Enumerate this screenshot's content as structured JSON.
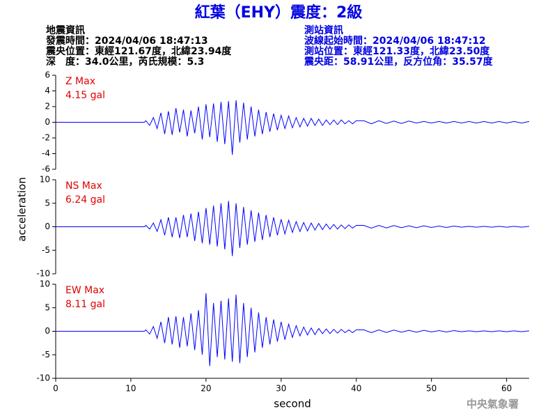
{
  "header": {
    "title": "紅葉（EHY）震度：2級",
    "left": [
      "地震資訊",
      "發震時間：2024/04/06 18:47:13",
      "震央位置：東經121.67度，北緯23.94度",
      "深　度：34.0公里，芮氏規模：5.3"
    ],
    "right": [
      "測站資訊",
      "波線起始時間：2024/04/06 18:47:12",
      "測站位置：東經121.33度，北緯23.50度",
      "震央距：58.91公里，反方位角：35.57度"
    ]
  },
  "footer": {
    "agency": "中央氣象署"
  },
  "chart_data": [
    {
      "type": "line",
      "max_label": "Z Max",
      "max_value": "4.15 gal",
      "color": "#0000ff",
      "xlim": [
        0,
        63
      ],
      "ylim": [
        -6,
        6
      ],
      "yticks": [
        -6,
        -4,
        -2,
        0,
        2,
        4,
        6
      ],
      "x": [
        0,
        11.8,
        12,
        12.5,
        13,
        13.5,
        14,
        14.5,
        15,
        15.5,
        16,
        16.5,
        17,
        17.5,
        18,
        18.5,
        19,
        19.5,
        20,
        20.5,
        21,
        21.5,
        22,
        22.5,
        23,
        23.5,
        24,
        24.5,
        25,
        25.5,
        26,
        26.5,
        27,
        27.5,
        28,
        28.5,
        29,
        29.5,
        30,
        30.5,
        31,
        31.5,
        32,
        32.5,
        33,
        33.5,
        34,
        34.5,
        35,
        35.5,
        36,
        36.5,
        37,
        37.5,
        38,
        38.5,
        39,
        39.5,
        40,
        41,
        42,
        43,
        44,
        45,
        46,
        47,
        48,
        49,
        50,
        51,
        52,
        53,
        54,
        55,
        56,
        57,
        58,
        59,
        60,
        61,
        62,
        63
      ],
      "values": [
        0,
        0,
        0.2,
        -0.4,
        0.6,
        -0.8,
        1.2,
        -1.5,
        1.4,
        -1.6,
        1.8,
        -1.3,
        1.6,
        -1.8,
        1.5,
        -1.4,
        2.0,
        -2.2,
        2.3,
        -1.9,
        2.4,
        -2.5,
        2.6,
        -2.8,
        2.7,
        -4.15,
        2.8,
        -2.6,
        2.5,
        -2.2,
        2.0,
        -1.8,
        1.6,
        -1.5,
        1.3,
        -1.2,
        1.1,
        -1.0,
        0.9,
        -0.8,
        0.8,
        -0.7,
        0.6,
        -0.6,
        0.5,
        -0.5,
        0.5,
        -0.4,
        0.4,
        -0.4,
        0.3,
        -0.3,
        0.3,
        -0.3,
        0.3,
        -0.2,
        0.2,
        -0.2,
        0.2,
        0.2,
        -0.2,
        0.2,
        -0.15,
        0.15,
        -0.15,
        0.15,
        -0.1,
        0.1,
        -0.1,
        0.1,
        -0.1,
        0.1,
        -0.1,
        0.1,
        -0.1,
        0.1,
        -0.1,
        0.1,
        -0.1,
        0.1,
        -0.1,
        0.1
      ]
    },
    {
      "type": "line",
      "max_label": "NS Max",
      "max_value": "6.24 gal",
      "color": "#0000ff",
      "y_label": "acceleration",
      "xlim": [
        0,
        63
      ],
      "ylim": [
        -10,
        10
      ],
      "yticks": [
        -10,
        -5,
        0,
        5,
        10
      ],
      "x": [
        0,
        11.8,
        12,
        12.5,
        13,
        13.5,
        14,
        14.5,
        15,
        15.5,
        16,
        16.5,
        17,
        17.5,
        18,
        18.5,
        19,
        19.5,
        20,
        20.5,
        21,
        21.5,
        22,
        22.5,
        23,
        23.5,
        24,
        24.5,
        25,
        25.5,
        26,
        26.5,
        27,
        27.5,
        28,
        28.5,
        29,
        29.5,
        30,
        30.5,
        31,
        31.5,
        32,
        32.5,
        33,
        33.5,
        34,
        34.5,
        35,
        35.5,
        36,
        36.5,
        37,
        37.5,
        38,
        38.5,
        39,
        39.5,
        40,
        41,
        42,
        43,
        44,
        45,
        46,
        47,
        48,
        49,
        50,
        51,
        52,
        53,
        54,
        55,
        56,
        57,
        58,
        59,
        60,
        61,
        62,
        63
      ],
      "values": [
        0,
        0,
        0.3,
        -0.5,
        0.8,
        -1.0,
        1.5,
        -1.8,
        2.0,
        -2.2,
        2.0,
        -2.4,
        2.5,
        -2.2,
        2.8,
        -3.0,
        3.2,
        -3.5,
        4.0,
        -3.8,
        4.5,
        -4.2,
        5.0,
        -4.8,
        5.5,
        -6.24,
        5.0,
        -4.5,
        4.2,
        -3.8,
        3.5,
        -3.2,
        3.0,
        -2.8,
        2.5,
        -2.2,
        2.0,
        -1.8,
        1.6,
        -1.5,
        1.4,
        -1.2,
        1.1,
        -1.0,
        0.9,
        -0.9,
        0.8,
        -0.7,
        0.7,
        -0.6,
        0.6,
        -0.5,
        0.5,
        -0.5,
        0.4,
        -0.4,
        0.4,
        -0.3,
        0.3,
        0.3,
        -0.3,
        0.3,
        -0.25,
        0.25,
        -0.2,
        0.2,
        -0.2,
        0.2,
        -0.15,
        0.15,
        -0.15,
        0.15,
        -0.1,
        0.1,
        -0.1,
        0.1,
        -0.1,
        0.1,
        -0.1,
        0.1,
        -0.1,
        0.1
      ]
    },
    {
      "type": "line",
      "max_label": "EW Max",
      "max_value": "8.11 gal",
      "color": "#0000ff",
      "x_label": "second",
      "xlim": [
        0,
        63
      ],
      "ylim": [
        -10,
        10
      ],
      "yticks": [
        -10,
        -5,
        0,
        5,
        10
      ],
      "xticks": [
        0,
        10,
        20,
        30,
        40,
        50,
        60
      ],
      "x": [
        0,
        11.8,
        12,
        12.5,
        13,
        13.5,
        14,
        14.5,
        15,
        15.5,
        16,
        16.5,
        17,
        17.5,
        18,
        18.5,
        19,
        19.5,
        20,
        20.5,
        21,
        21.5,
        22,
        22.5,
        23,
        23.5,
        24,
        24.5,
        25,
        25.5,
        26,
        26.5,
        27,
        27.5,
        28,
        28.5,
        29,
        29.5,
        30,
        30.5,
        31,
        31.5,
        32,
        32.5,
        33,
        33.5,
        34,
        34.5,
        35,
        35.5,
        36,
        36.5,
        37,
        37.5,
        38,
        38.5,
        39,
        39.5,
        40,
        41,
        42,
        43,
        44,
        45,
        46,
        47,
        48,
        49,
        50,
        51,
        52,
        53,
        54,
        55,
        56,
        57,
        58,
        59,
        60,
        61,
        62,
        63
      ],
      "values": [
        0,
        0,
        0.3,
        -0.6,
        1.0,
        -1.5,
        2.0,
        -2.5,
        3.0,
        -2.8,
        3.2,
        -3.5,
        3.0,
        -3.2,
        3.8,
        -4.0,
        4.5,
        -5.0,
        8.11,
        -7.4,
        6.0,
        -5.5,
        6.5,
        -6.0,
        7.0,
        -6.5,
        7.8,
        -6.8,
        6.0,
        -5.5,
        5.0,
        -4.5,
        4.0,
        -3.5,
        3.0,
        -2.8,
        2.5,
        -2.2,
        2.0,
        -1.8,
        1.5,
        -1.3,
        1.2,
        -1.0,
        0.9,
        -0.8,
        0.7,
        -0.7,
        0.6,
        -0.5,
        0.5,
        -0.5,
        0.4,
        -0.4,
        0.4,
        -0.3,
        0.3,
        -0.3,
        0.3,
        0.3,
        -0.3,
        0.3,
        -0.25,
        0.25,
        -0.2,
        0.2,
        -0.2,
        0.2,
        -0.15,
        0.15,
        -0.15,
        0.15,
        -0.1,
        0.1,
        -0.1,
        0.1,
        -0.1,
        0.1,
        -0.1,
        0.1,
        -0.1,
        0.1
      ]
    }
  ]
}
